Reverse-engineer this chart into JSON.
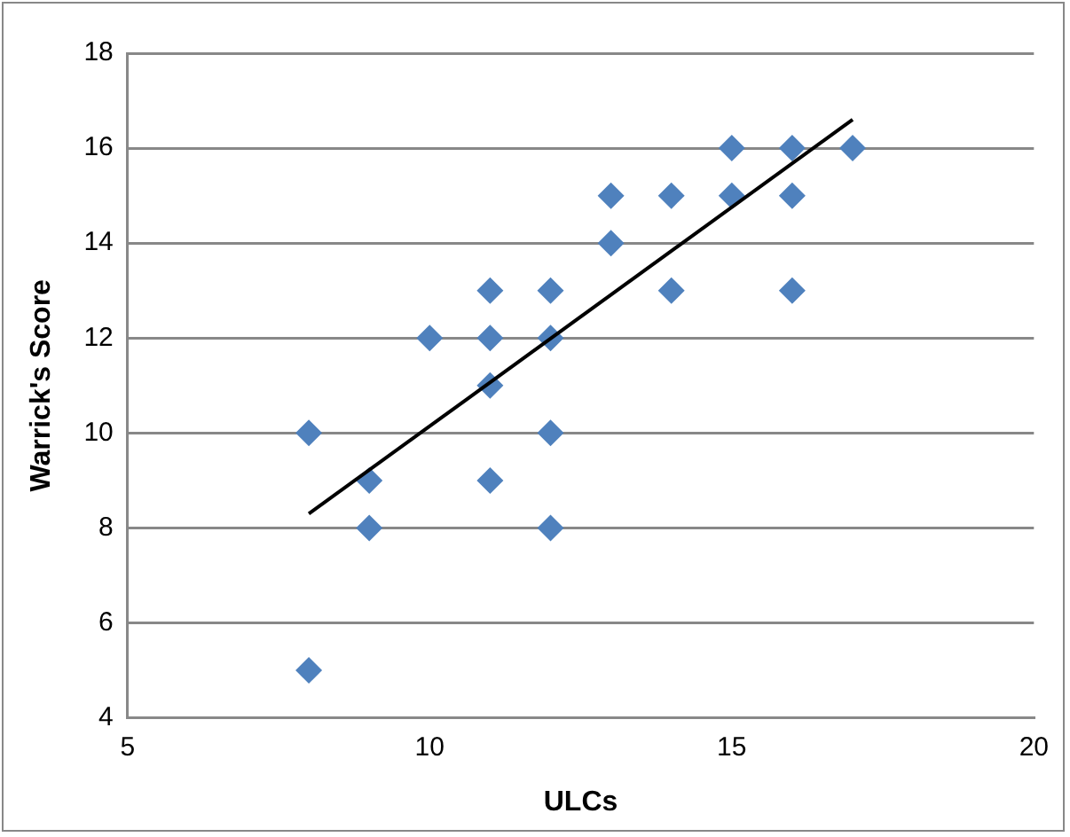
{
  "chart_data": {
    "type": "scatter",
    "xlabel": "ULCs",
    "ylabel": "Warrick's Score",
    "xlim": [
      5,
      20
    ],
    "xticks": [
      5,
      10,
      15,
      20
    ],
    "ylim": [
      4,
      18
    ],
    "yticks": [
      4,
      6,
      8,
      10,
      12,
      14,
      16,
      18
    ],
    "grid": "y",
    "legend": false,
    "marker": "diamond",
    "series": [
      {
        "color": "#4f81bd",
        "x": [
          8,
          8,
          9,
          9,
          10,
          11,
          11,
          11,
          11,
          12,
          12,
          12,
          12,
          13,
          13,
          14,
          14,
          15,
          15,
          16,
          16,
          16,
          17
        ],
        "values": [
          10,
          5,
          9,
          8,
          12,
          13,
          12,
          11,
          9,
          13,
          12,
          10,
          8,
          15,
          14,
          15,
          13,
          16,
          15,
          16,
          15,
          13,
          16
        ]
      },
      {
        "type": "line",
        "color": "#000000",
        "marker": "none",
        "x": [
          8,
          17
        ],
        "values": [
          8.3,
          16.6
        ]
      }
    ]
  }
}
